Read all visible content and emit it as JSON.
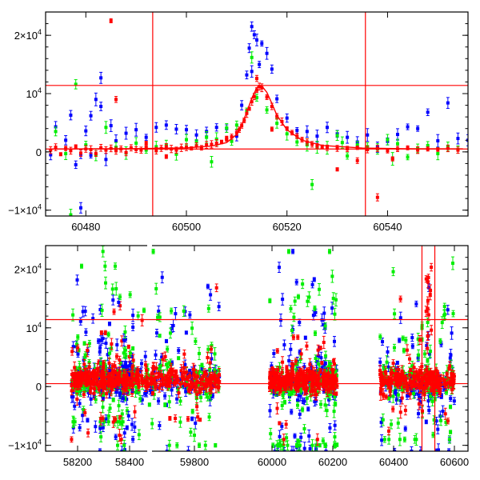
{
  "chart_data": [
    {
      "type": "scatter",
      "title": "",
      "xlabel": "",
      "ylabel": "",
      "xlim": [
        60472,
        60556
      ],
      "ylim": [
        -11000,
        24000
      ],
      "grid": false,
      "xticks": [
        60480,
        60500,
        60520,
        60540
      ],
      "xtick_labels": [
        "60480",
        "60500",
        "60520",
        "60540"
      ],
      "yticks": [
        -10000,
        0,
        10000,
        20000
      ],
      "ytick_labels": [
        {
          "mant": "−1×10",
          "exp": "4"
        },
        {
          "mant": "0",
          "exp": ""
        },
        {
          "mant": "10",
          "exp": "4"
        },
        {
          "mant": "2×10",
          "exp": "4"
        }
      ],
      "reference_lines": {
        "horizontal": [
          11400,
          500
        ],
        "vertical": [
          60493.3,
          60535.6
        ]
      },
      "colors": {
        "red": "#ff0000",
        "green": "#00ee00",
        "blue": "#0000ff",
        "frame": "#000000"
      },
      "model_curve": {
        "color": "#ff0000",
        "x": [
          60473,
          60480,
          60490,
          60500,
          60505,
          60508,
          60510,
          60511,
          60512,
          60513,
          60514,
          60514.5,
          60515,
          60516,
          60517,
          60518,
          60520,
          60523,
          60527,
          60535,
          60545,
          60555
        ],
        "y": [
          500,
          520,
          560,
          700,
          1000,
          1600,
          3000,
          4600,
          6800,
          9200,
          11000,
          11400,
          11300,
          10200,
          8300,
          6300,
          3800,
          2000,
          1100,
          650,
          530,
          510
        ]
      },
      "series": [
        {
          "color": "red",
          "x": [
            60473,
            60474,
            60475,
            60476,
            60477,
            60478,
            60479,
            60480,
            60481,
            60482,
            60483,
            60484,
            60485,
            60486,
            60487,
            60488,
            60489,
            60490,
            60491,
            60492,
            60494,
            60495,
            60496,
            60497,
            60498,
            60499,
            60500,
            60501,
            60502,
            60503,
            60504,
            60505,
            60506,
            60507,
            60508,
            60509,
            60510,
            60510.5,
            60511,
            60511.5,
            60512,
            60512.5,
            60513,
            60513.5,
            60514,
            60514.5,
            60515,
            60516,
            60517,
            60518,
            60519,
            60520,
            60521,
            60522,
            60523,
            60524,
            60525,
            60526,
            60527,
            60528,
            60530,
            60532,
            60534,
            60536,
            60538,
            60540,
            60542,
            60544,
            60546,
            60548,
            60550,
            60552,
            60554,
            60485,
            60486,
            60530,
            60534,
            60538,
            60541,
            60517,
            60514,
            60496,
            60508,
            60492
          ],
          "y": [
            300,
            800,
            -400,
            600,
            200,
            900,
            -200,
            500,
            400,
            -300,
            700,
            300,
            600,
            200,
            500,
            -100,
            700,
            400,
            300,
            800,
            200,
            600,
            900,
            500,
            300,
            700,
            800,
            600,
            1000,
            700,
            1200,
            1300,
            1500,
            1700,
            2100,
            2600,
            3300,
            3800,
            4500,
            5400,
            6600,
            7400,
            8600,
            9500,
            10600,
            11200,
            11000,
            9400,
            7800,
            6100,
            5200,
            4000,
            3300,
            2700,
            2100,
            1700,
            1300,
            1000,
            900,
            700,
            600,
            500,
            700,
            400,
            600,
            200,
            500,
            700,
            300,
            500,
            400,
            600,
            300,
            22500,
            9000,
            -3000,
            -1500,
            -7800,
            -1200,
            3900,
            12600,
            -800,
            2400,
            1500
          ]
        },
        {
          "color": "green",
          "x": [
            60474,
            60476,
            60478,
            60480,
            60482,
            60484,
            60486,
            60488,
            60490,
            60492,
            60494,
            60496,
            60498,
            60500,
            60502,
            60504,
            60506,
            60508,
            60510,
            60512,
            60514,
            60516,
            60518,
            60520,
            60522,
            60524,
            60526,
            60528,
            60530,
            60532,
            60534,
            60536,
            60538,
            60540,
            60542,
            60544,
            60546,
            60548,
            60550,
            60552,
            60554,
            60477,
            60505,
            60513,
            60525,
            60531,
            60541,
            60509
          ],
          "y": [
            3500,
            -300,
            11600,
            1200,
            -500,
            4200,
            800,
            -200,
            1500,
            300,
            900,
            1200,
            -400,
            2100,
            1700,
            2500,
            2200,
            4100,
            4600,
            7000,
            9300,
            7200,
            4900,
            3100,
            1700,
            1200,
            800,
            700,
            2800,
            -700,
            1200,
            900,
            500,
            2100,
            1400,
            -900,
            600,
            1100,
            -300,
            900,
            400,
            -10800,
            -1700,
            16200,
            -5600,
            1600,
            -1200,
            1800
          ]
        },
        {
          "color": "blue",
          "x": [
            60473,
            60474,
            60476,
            60477,
            60478,
            60479,
            60480,
            60481,
            60482,
            60483,
            60484,
            60485,
            60486,
            60488,
            60490,
            60492,
            60494,
            60496,
            60498,
            60500,
            60502,
            60504,
            60506,
            60508,
            60510,
            60511,
            60512,
            60513,
            60514,
            60515,
            60516,
            60517,
            60518,
            60520,
            60522,
            60524,
            60526,
            60528,
            60530,
            60532,
            60534,
            60536,
            60538,
            60540,
            60542,
            60544,
            60546,
            60548,
            60550,
            60552,
            60554,
            60556,
            60512.5,
            60513.5,
            60514.5,
            60513,
            60479,
            60483,
            60481
          ],
          "y": [
            -500,
            4300,
            2000,
            6300,
            -2200,
            -400,
            3600,
            6200,
            9000,
            12700,
            -1300,
            4500,
            1900,
            3200,
            3800,
            2500,
            4200,
            4600,
            3900,
            3800,
            2900,
            3500,
            4200,
            4000,
            2700,
            8000,
            13200,
            21500,
            19200,
            18600,
            16900,
            14200,
            9100,
            5800,
            3700,
            3500,
            2700,
            4200,
            3100,
            2500,
            1700,
            2900,
            800,
            1800,
            3000,
            4300,
            4000,
            6800,
            1900,
            8400,
            2300,
            2000,
            17800,
            20100,
            15000,
            13800,
            -9600,
            7800,
            -600
          ]
        }
      ]
    },
    {
      "type": "scatter",
      "title": "",
      "xlabel": "",
      "ylabel": "",
      "xlim": [
        58120,
        60620
      ],
      "ylim": [
        -11000,
        24000
      ],
      "grid": false,
      "broken_x_axis": true,
      "xticks": [
        58200,
        58400,
        59800,
        60000,
        60200,
        60400,
        60600
      ],
      "xtick_labels": [
        "58200",
        "58400",
        "59800",
        "60000",
        "60200",
        "60400",
        "60600"
      ],
      "yticks": [
        -10000,
        0,
        10000,
        20000
      ],
      "ytick_labels": [
        {
          "mant": "−1×10",
          "exp": "4"
        },
        {
          "mant": "0",
          "exp": ""
        },
        {
          "mant": "10",
          "exp": "4"
        },
        {
          "mant": "2×10",
          "exp": "4"
        }
      ],
      "reference_lines": {
        "horizontal": [
          11400,
          500
        ],
        "vertical": [
          60493.3,
          60535.6
        ]
      },
      "colors": {
        "red": "#ff0000",
        "green": "#00ee00",
        "blue": "#0000ff",
        "frame": "#000000"
      },
      "seasons": [
        {
          "x_start": 58175,
          "x_end": 58415,
          "density": 0.8,
          "red": [
            1200,
            4000,
            -9000,
            22000
          ],
          "green": [
            1000,
            6000,
            -6000,
            20500
          ],
          "blue": [
            1000,
            5500,
            -7000,
            22500
          ]
        },
        {
          "x_start": 59555,
          "x_end": 59865,
          "density": 1.0,
          "red": [
            1200,
            3800,
            -11000,
            23000
          ],
          "green": [
            1000,
            6000,
            -10000,
            23000
          ],
          "blue": [
            1000,
            5800,
            -11000,
            23000
          ]
        },
        {
          "x_start": 59990,
          "x_end": 60215,
          "density": 1.0,
          "red": [
            1000,
            3600,
            -9000,
            22000
          ],
          "green": [
            1000,
            6200,
            -10000,
            23000
          ],
          "blue": [
            1000,
            6200,
            -11000,
            23000
          ]
        },
        {
          "x_start": 60355,
          "x_end": 60600,
          "density": 0.8,
          "red": [
            1000,
            3400,
            -11000,
            23000
          ],
          "green": [
            1000,
            5500,
            -9000,
            21000
          ],
          "blue": [
            1000,
            5800,
            -11000,
            23000
          ]
        }
      ]
    }
  ]
}
